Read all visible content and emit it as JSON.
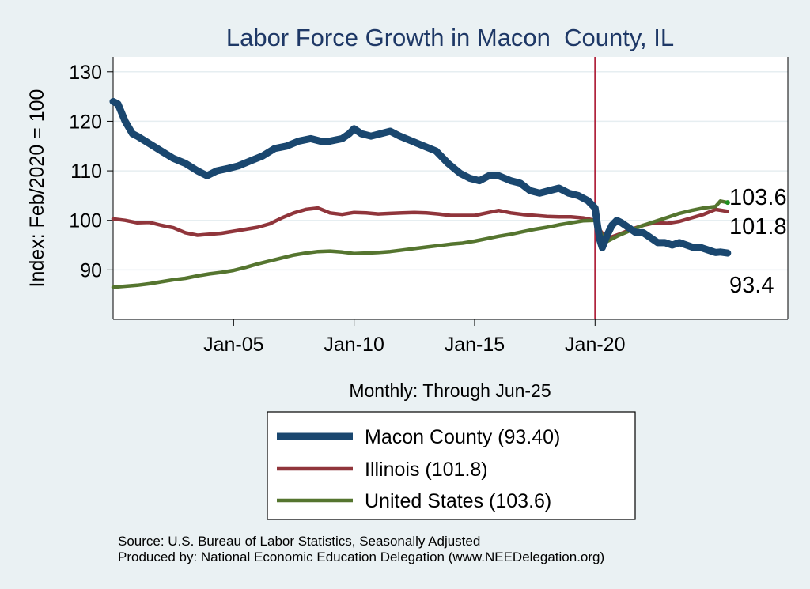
{
  "chart_data": {
    "type": "line",
    "title": "Labor Force Growth in Macon  County, IL",
    "xlabel": "Monthly: Through Jun-25",
    "ylabel": "Index: Feb/2020 = 100",
    "xlim": [
      2000.0,
      2028.0
    ],
    "ylim": [
      80,
      133
    ],
    "yticks": [
      90,
      100,
      110,
      120,
      130
    ],
    "xticks": [
      {
        "value": 2005.0,
        "label": "Jan-05"
      },
      {
        "value": 2010.0,
        "label": "Jan-10"
      },
      {
        "value": 2015.0,
        "label": "Jan-15"
      },
      {
        "value": 2020.0,
        "label": "Jan-20"
      }
    ],
    "reference_line": {
      "x": 2020.0,
      "color": "#b0243c"
    },
    "grid": true,
    "legend_position": "bottom",
    "series": [
      {
        "name": "Macon  County (93.40)",
        "color": "#1a476f",
        "end_label": "93.4",
        "x": [
          2000.0,
          2000.2,
          2000.5,
          2000.8,
          2001.0,
          2001.5,
          2002.0,
          2002.5,
          2003.0,
          2003.5,
          2003.9,
          2004.3,
          2004.8,
          2005.2,
          2005.7,
          2006.2,
          2006.7,
          2007.2,
          2007.7,
          2008.2,
          2008.6,
          2009.0,
          2009.5,
          2009.8,
          2010.0,
          2010.3,
          2010.7,
          2011.1,
          2011.5,
          2011.9,
          2012.4,
          2012.9,
          2013.4,
          2013.9,
          2014.4,
          2014.8,
          2015.2,
          2015.6,
          2016.0,
          2016.5,
          2016.9,
          2017.3,
          2017.7,
          2018.1,
          2018.5,
          2018.9,
          2019.3,
          2019.7,
          2020.0,
          2020.1,
          2020.2,
          2020.3,
          2020.5,
          2020.7,
          2020.9,
          2021.1,
          2021.4,
          2021.7,
          2022.0,
          2022.3,
          2022.6,
          2022.9,
          2023.2,
          2023.5,
          2023.8,
          2024.1,
          2024.4,
          2024.7,
          2025.0,
          2025.2,
          2025.5
        ],
        "values": [
          124.0,
          123.5,
          120.0,
          117.5,
          117.0,
          115.5,
          114.0,
          112.5,
          111.5,
          110.0,
          109.0,
          110.0,
          110.5,
          111.0,
          112.0,
          113.0,
          114.5,
          115.0,
          116.0,
          116.5,
          116.0,
          116.0,
          116.5,
          117.5,
          118.5,
          117.5,
          117.0,
          117.5,
          118.0,
          117.0,
          116.0,
          115.0,
          114.0,
          111.5,
          109.5,
          108.5,
          108.0,
          109.0,
          109.0,
          108.0,
          107.5,
          106.0,
          105.5,
          106.0,
          106.5,
          105.5,
          105.0,
          104.0,
          102.5,
          99.0,
          96.0,
          94.5,
          97.0,
          99.0,
          100.0,
          99.5,
          98.5,
          97.5,
          97.5,
          96.5,
          95.5,
          95.5,
          95.0,
          95.5,
          95.0,
          94.5,
          94.5,
          94.0,
          93.5,
          93.6,
          93.4
        ]
      },
      {
        "name": "Illinois (101.8)",
        "color": "#90353b",
        "end_label": "101.8",
        "x": [
          2000.0,
          2000.5,
          2001.0,
          2001.5,
          2002.0,
          2002.5,
          2003.0,
          2003.5,
          2004.0,
          2004.5,
          2005.0,
          2005.5,
          2006.0,
          2006.5,
          2007.0,
          2007.5,
          2008.0,
          2008.5,
          2009.0,
          2009.5,
          2010.0,
          2010.5,
          2011.0,
          2011.5,
          2012.0,
          2012.5,
          2013.0,
          2013.5,
          2014.0,
          2014.5,
          2015.0,
          2015.5,
          2016.0,
          2016.5,
          2017.0,
          2017.5,
          2018.0,
          2018.5,
          2019.0,
          2019.5,
          2020.0,
          2020.2,
          2020.4,
          2020.6,
          2021.0,
          2021.5,
          2022.0,
          2022.5,
          2023.0,
          2023.5,
          2024.0,
          2024.5,
          2025.0,
          2025.5
        ],
        "values": [
          100.3,
          100.0,
          99.5,
          99.6,
          99.0,
          98.5,
          97.5,
          97.0,
          97.2,
          97.4,
          97.8,
          98.2,
          98.6,
          99.3,
          100.5,
          101.5,
          102.2,
          102.5,
          101.5,
          101.2,
          101.6,
          101.5,
          101.3,
          101.4,
          101.5,
          101.6,
          101.5,
          101.3,
          101.0,
          101.0,
          101.0,
          101.5,
          102.0,
          101.5,
          101.2,
          101.0,
          100.8,
          100.7,
          100.7,
          100.5,
          100.0,
          98.0,
          96.8,
          96.5,
          97.2,
          98.2,
          99.0,
          99.5,
          99.4,
          99.8,
          100.5,
          101.2,
          102.2,
          101.8
        ]
      },
      {
        "name": "United States (103.6)",
        "color": "#55752f",
        "end_label": "103.6",
        "x": [
          2000.0,
          2000.5,
          2001.0,
          2001.5,
          2002.0,
          2002.5,
          2003.0,
          2003.5,
          2004.0,
          2004.5,
          2005.0,
          2005.5,
          2006.0,
          2006.5,
          2007.0,
          2007.5,
          2008.0,
          2008.5,
          2009.0,
          2009.5,
          2010.0,
          2010.5,
          2011.0,
          2011.5,
          2012.0,
          2012.5,
          2013.0,
          2013.5,
          2014.0,
          2014.5,
          2015.0,
          2015.5,
          2016.0,
          2016.5,
          2017.0,
          2017.5,
          2018.0,
          2018.5,
          2019.0,
          2019.5,
          2020.0,
          2020.2,
          2020.4,
          2020.6,
          2021.0,
          2021.5,
          2022.0,
          2022.5,
          2023.0,
          2023.5,
          2024.0,
          2024.5,
          2025.0,
          2025.2,
          2025.5
        ],
        "values": [
          86.5,
          86.7,
          86.9,
          87.2,
          87.6,
          88.0,
          88.3,
          88.8,
          89.2,
          89.5,
          89.9,
          90.5,
          91.2,
          91.8,
          92.4,
          93.0,
          93.4,
          93.7,
          93.8,
          93.6,
          93.3,
          93.4,
          93.5,
          93.7,
          94.0,
          94.3,
          94.6,
          94.9,
          95.2,
          95.4,
          95.8,
          96.3,
          96.8,
          97.2,
          97.7,
          98.2,
          98.6,
          99.1,
          99.5,
          99.9,
          100.0,
          98.0,
          95.5,
          96.0,
          97.0,
          98.0,
          99.0,
          99.8,
          100.6,
          101.4,
          102.0,
          102.5,
          102.8,
          103.9,
          103.6
        ]
      }
    ]
  },
  "source_line": "Source: U.S. Bureau of Labor Statistics, Seasonally Adjusted",
  "produced_line": "Produced by: National Economic Education Delegation (www.NEEDelegation.org)"
}
